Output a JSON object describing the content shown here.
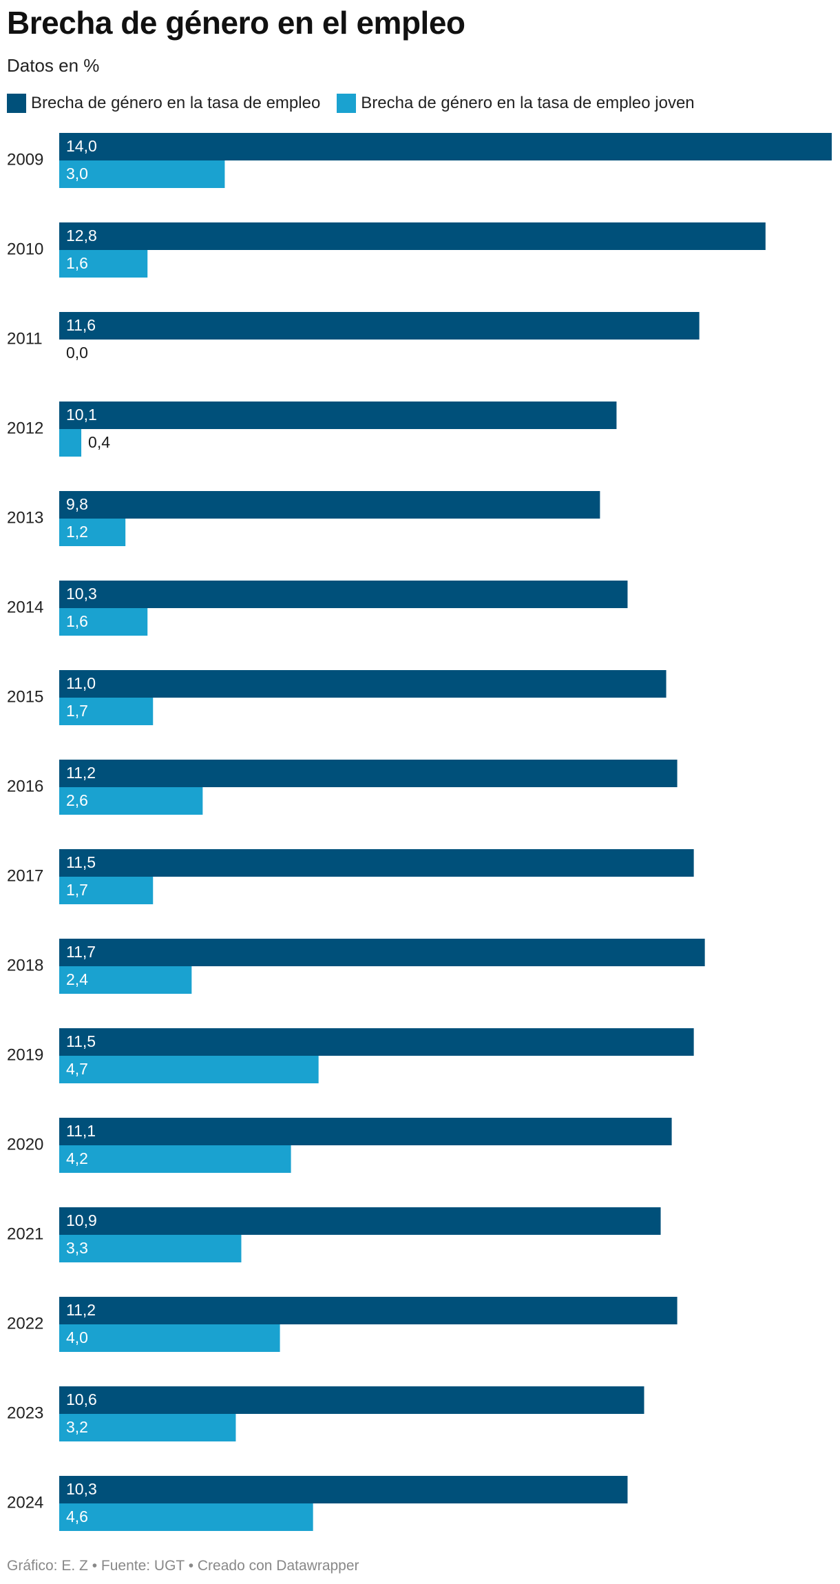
{
  "header": {
    "title": "Brecha de género en el empleo",
    "subtitle": "Datos en %"
  },
  "footer": {
    "credit": "Gráfico: E. Z • Fuente: UGT • Creado con Datawrapper"
  },
  "colors": {
    "series_1": "#00507a",
    "series_2": "#1aa2d0"
  },
  "chart_data": {
    "type": "bar",
    "orientation": "horizontal",
    "categories": [
      "2009",
      "2010",
      "2011",
      "2012",
      "2013",
      "2014",
      "2015",
      "2016",
      "2017",
      "2018",
      "2019",
      "2020",
      "2021",
      "2022",
      "2023",
      "2024"
    ],
    "series": [
      {
        "name": "Brecha de género en la tasa de empleo",
        "values": [
          14.0,
          12.8,
          11.6,
          10.1,
          9.8,
          10.3,
          11.0,
          11.2,
          11.5,
          11.7,
          11.5,
          11.1,
          10.9,
          11.2,
          10.6,
          10.3
        ],
        "labels": [
          "14,0",
          "12,8",
          "11,6",
          "10,1",
          "9,8",
          "10,3",
          "11,0",
          "11,2",
          "11,5",
          "11,7",
          "11,5",
          "11,1",
          "10,9",
          "11,2",
          "10,6",
          "10,3"
        ]
      },
      {
        "name": "Brecha de género en la tasa de empleo joven",
        "values": [
          3.0,
          1.6,
          0.0,
          0.4,
          1.2,
          1.6,
          1.7,
          2.6,
          1.7,
          2.4,
          4.7,
          4.2,
          3.3,
          4.0,
          3.2,
          4.6
        ],
        "labels": [
          "3,0",
          "1,6",
          "0,0",
          "0,4",
          "1,2",
          "1,6",
          "1,7",
          "2,6",
          "1,7",
          "2,4",
          "4,7",
          "4,2",
          "3,3",
          "4,0",
          "3,2",
          "4,6"
        ]
      }
    ],
    "xlim": [
      0,
      14
    ],
    "grid": false,
    "legend_position": "top-left"
  }
}
